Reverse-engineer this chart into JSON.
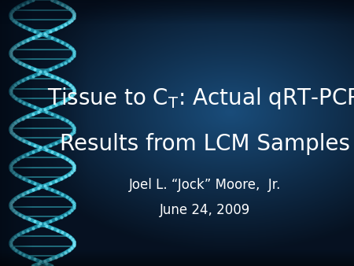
{
  "title_line1_pre": "Tissue to C",
  "title_sub": "T",
  "title_line1_post": ": Actual qRT-PCR",
  "title_line2": "Results from LCM Samples",
  "subtitle_line1": "Joel L. “Jock” Moore,  Jr.",
  "subtitle_line2": "June 24, 2009",
  "text_color": "#ffffff",
  "title_fontsize": 20,
  "subtitle_fontsize": 12,
  "dna_color1": "#2ab5cc",
  "dna_color2": "#1a8fa8",
  "dna_rung_color": "#3dd0e0",
  "bg_dark": [
    0.025,
    0.07,
    0.13
  ],
  "bg_mid": [
    0.07,
    0.22,
    0.38
  ],
  "bg_light": [
    0.1,
    0.3,
    0.48
  ],
  "figsize": [
    4.5,
    3.38
  ],
  "dpi": 100
}
